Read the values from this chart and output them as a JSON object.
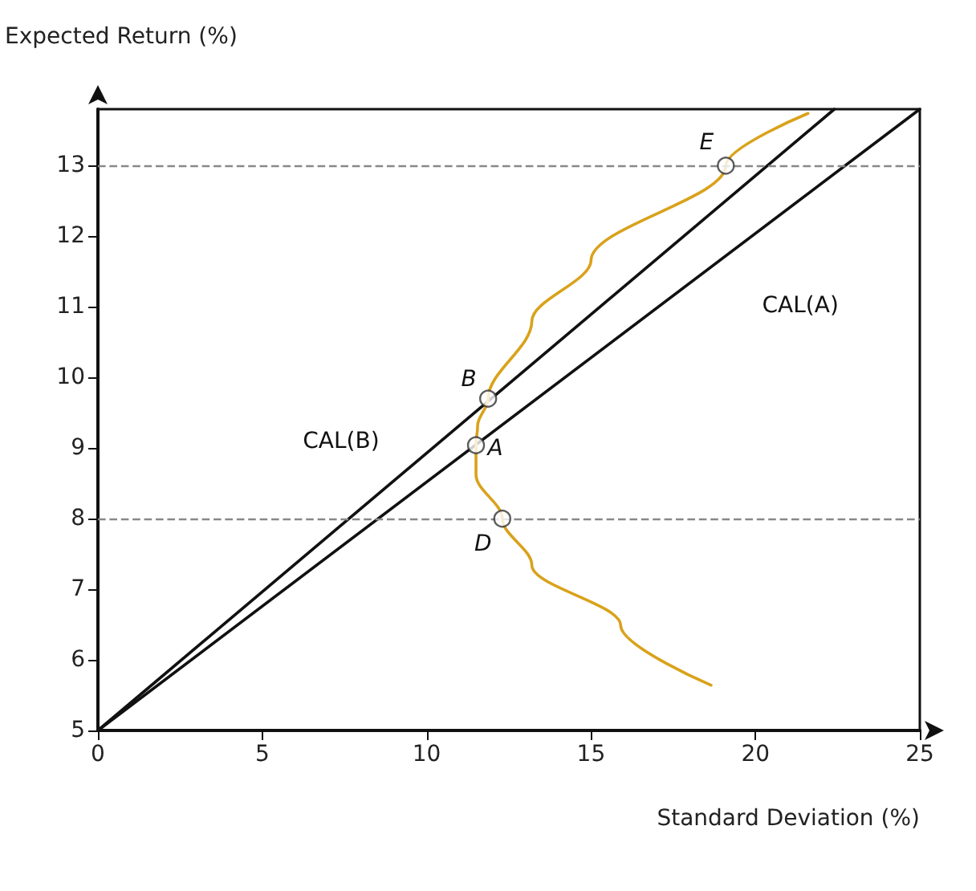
{
  "chart_data": {
    "type": "line",
    "xlabel": "Standard Deviation (%)",
    "ylabel": "Expected Return (%)",
    "series": [
      {
        "name": "CAL(A)",
        "color": "#111111",
        "x": [
          0,
          25
        ],
        "values": [
          5,
          13.8
        ]
      },
      {
        "name": "CAL(B)",
        "color": "#111111",
        "x": [
          0,
          22.4
        ],
        "values": [
          5,
          13.8
        ]
      },
      {
        "color": "#d9a21b",
        "x": [
          21.6,
          19.1,
          15.0,
          13.2,
          11.87,
          11.55,
          11.5,
          11.5,
          12.3,
          13.2,
          15.9,
          18.65
        ],
        "values": [
          13.74,
          13.0,
          11.66,
          10.8,
          9.7,
          9.32,
          9.04,
          8.62,
          8.0,
          7.34,
          6.49,
          5.64
        ]
      },
      {
        "type": "scatter",
        "color": "#333333",
        "marker": "circle",
        "x": [
          11.5,
          11.87,
          12.3,
          19.1
        ],
        "values": [
          9.04,
          9.7,
          8.0,
          13.0
        ]
      }
    ],
    "annotations": [
      {
        "text": "A",
        "x": 11.5,
        "y": 9.04
      },
      {
        "text": "B",
        "x": 11.87,
        "y": 9.7
      },
      {
        "text": "D",
        "x": 12.3,
        "y": 8.0
      },
      {
        "text": "E",
        "x": 19.1,
        "y": 13.0
      }
    ],
    "ref_lines": [
      {
        "axis": "y",
        "value": 13,
        "line_style": "dashed",
        "color": "#888888"
      },
      {
        "axis": "y",
        "value": 8,
        "line_style": "dashed",
        "color": "#888888"
      }
    ],
    "xlim": [
      0,
      25
    ],
    "xticks": [
      0,
      5,
      10,
      15,
      20,
      25
    ],
    "ylim": [
      5,
      13.8
    ],
    "yticks": [
      5,
      6,
      7,
      8,
      9,
      10,
      11,
      12,
      13
    ],
    "grid": false,
    "legend": false,
    "marker": "none",
    "line_style": "solid"
  }
}
